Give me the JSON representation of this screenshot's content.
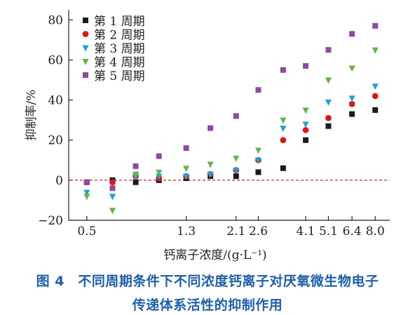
{
  "chart_data": {
    "type": "scatter",
    "xlabel": "钙离子浓度/(g·L⁻¹)",
    "ylabel": "抑制率/%",
    "xscale": "log",
    "xlim": [
      0.42,
      9.2
    ],
    "ylim": [
      -20,
      85
    ],
    "x_ticks": [
      0.5,
      1.3,
      2.1,
      2.6,
      4.1,
      5.1,
      6.4,
      8.0
    ],
    "x_tick_labels": [
      "0.5",
      "1.3",
      "2.1",
      "2.6",
      "4.1",
      "5.1",
      "6.4",
      "8.0"
    ],
    "y_ticks": [
      -20,
      0,
      20,
      40,
      60,
      80
    ],
    "y_tick_labels": [
      "−20",
      "0",
      "20",
      "40",
      "60",
      "80"
    ],
    "reference_line": {
      "y": 0,
      "style": "dashed",
      "color": "#c0282d"
    },
    "legend_position": "top-left",
    "x": [
      0.5,
      0.64,
      0.8,
      1.0,
      1.3,
      1.64,
      2.1,
      2.6,
      3.3,
      4.1,
      5.1,
      6.4,
      8.0
    ],
    "series": [
      {
        "name": "第 1 周期",
        "marker": "square",
        "color": "#1a1a1a",
        "values": [
          -1,
          0,
          -1,
          0,
          1,
          2,
          2,
          4,
          6,
          20,
          27,
          33,
          35
        ]
      },
      {
        "name": "第 2 周期",
        "marker": "circle",
        "color": "#d7191c",
        "values": [
          -1,
          -1,
          2,
          1,
          2,
          3,
          5,
          10,
          20,
          25,
          31,
          38,
          42
        ]
      },
      {
        "name": "第 3 周期",
        "marker": "triangle-down",
        "color": "#1aa3d9",
        "values": [
          -6,
          -8,
          2,
          2,
          2,
          3,
          5,
          10,
          26,
          28,
          39,
          41,
          47
        ]
      },
      {
        "name": "第 4 周期",
        "marker": "triangle-down",
        "color": "#6ab04c",
        "values": [
          -8,
          -15,
          3,
          4,
          6,
          8,
          11,
          15,
          30,
          35,
          50,
          56,
          65
        ]
      },
      {
        "name": "第 5 周期",
        "marker": "square",
        "color": "#8e4a9e",
        "values": [
          -1,
          -4,
          7,
          12,
          16,
          26,
          32,
          45,
          55,
          57,
          65,
          73,
          77
        ]
      }
    ]
  },
  "caption": {
    "line1": "图 4　不同周期条件下不同浓度钙离子对厌氧微生物电子",
    "line2": "传递体系活性的抑制作用"
  }
}
